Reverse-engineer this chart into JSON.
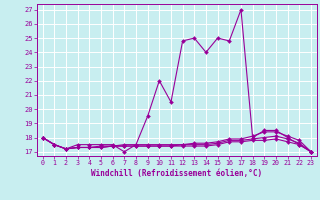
{
  "title": "",
  "xlabel": "Windchill (Refroidissement éolien,°C)",
  "ylabel": "",
  "background_color": "#c8eef0",
  "line_color": "#990099",
  "grid_color": "#ffffff",
  "xlim": [
    -0.5,
    23.5
  ],
  "ylim": [
    16.7,
    27.4
  ],
  "yticks": [
    17,
    18,
    19,
    20,
    21,
    22,
    23,
    24,
    25,
    26,
    27
  ],
  "xticks": [
    0,
    1,
    2,
    3,
    4,
    5,
    6,
    7,
    8,
    9,
    10,
    11,
    12,
    13,
    14,
    15,
    16,
    17,
    18,
    19,
    20,
    21,
    22,
    23
  ],
  "series": [
    {
      "x": [
        0,
        1,
        2,
        3,
        4,
        5,
        6,
        7,
        8,
        9,
        10,
        11,
        12,
        13,
        14,
        15,
        16,
        17,
        18,
        19,
        20,
        21,
        22,
        23
      ],
      "y": [
        18.0,
        17.5,
        17.2,
        17.5,
        17.5,
        17.5,
        17.5,
        17.0,
        17.5,
        19.5,
        22.0,
        20.5,
        24.8,
        25.0,
        24.0,
        25.0,
        24.8,
        27.0,
        18.0,
        18.5,
        18.5,
        18.0,
        17.5,
        17.0
      ]
    },
    {
      "x": [
        0,
        1,
        2,
        3,
        4,
        5,
        6,
        7,
        8,
        9,
        10,
        11,
        12,
        13,
        14,
        15,
        16,
        17,
        18,
        19,
        20,
        21,
        22,
        23
      ],
      "y": [
        18.0,
        17.5,
        17.2,
        17.3,
        17.3,
        17.3,
        17.4,
        17.4,
        17.4,
        17.4,
        17.4,
        17.4,
        17.4,
        17.4,
        17.4,
        17.5,
        17.7,
        17.7,
        17.8,
        17.8,
        17.9,
        17.7,
        17.5,
        17.0
      ]
    },
    {
      "x": [
        0,
        1,
        2,
        3,
        4,
        5,
        6,
        7,
        8,
        9,
        10,
        11,
        12,
        13,
        14,
        15,
        16,
        17,
        18,
        19,
        20,
        21,
        22,
        23
      ],
      "y": [
        18.0,
        17.5,
        17.2,
        17.3,
        17.3,
        17.3,
        17.4,
        17.4,
        17.4,
        17.4,
        17.4,
        17.4,
        17.5,
        17.5,
        17.5,
        17.6,
        17.8,
        17.8,
        17.9,
        18.0,
        18.1,
        17.9,
        17.6,
        17.0
      ]
    },
    {
      "x": [
        0,
        1,
        2,
        3,
        4,
        5,
        6,
        7,
        8,
        9,
        10,
        11,
        12,
        13,
        14,
        15,
        16,
        17,
        18,
        19,
        20,
        21,
        22,
        23
      ],
      "y": [
        18.0,
        17.5,
        17.2,
        17.3,
        17.3,
        17.4,
        17.4,
        17.5,
        17.5,
        17.5,
        17.5,
        17.5,
        17.5,
        17.6,
        17.6,
        17.7,
        17.9,
        17.9,
        18.1,
        18.4,
        18.4,
        18.1,
        17.8,
        17.0
      ]
    }
  ]
}
